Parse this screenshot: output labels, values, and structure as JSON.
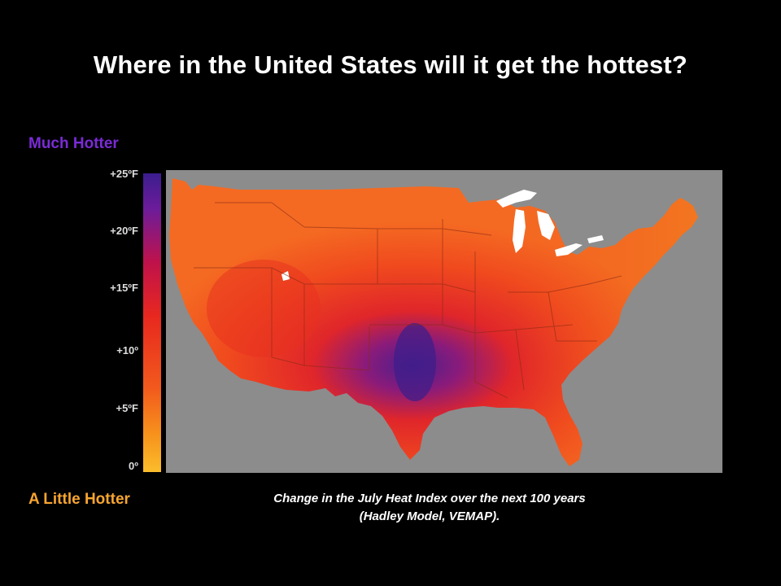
{
  "title": "Where in the United States will it get the hottest?",
  "legend": {
    "top_label": "Much Hotter",
    "bottom_label": "A Little Hotter",
    "ticks": [
      "+25ºF",
      "+20ºF",
      "+15ºF",
      "+10º",
      "+5ºF",
      "0º"
    ]
  },
  "caption": {
    "line1": "Change in the July Heat Index over the next 100 years",
    "line2": "(Hadley Model, VEMAP)."
  },
  "colors": {
    "background": "#000000",
    "ocean": "#8c8c8c",
    "lakes": "#ffffff",
    "much_hotter": "#3b1d8f",
    "a_little_hotter": "#fbbd2c",
    "top_label_color": "#7a2bd6",
    "bottom_label_color": "#f7a531"
  }
}
